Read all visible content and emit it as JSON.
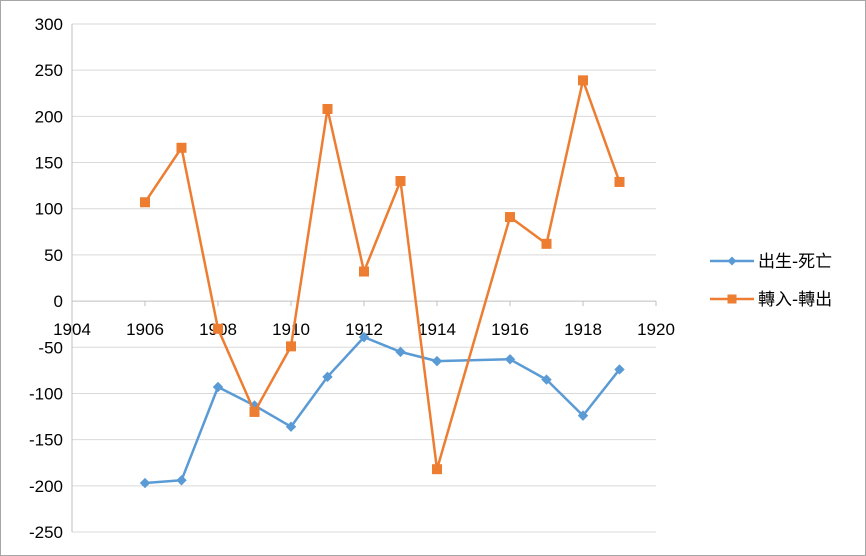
{
  "chart_data": {
    "type": "line",
    "title": "",
    "xlabel": "",
    "ylabel": "",
    "xlim": [
      1904,
      1920
    ],
    "ylim": [
      -250,
      300
    ],
    "x_ticks": [
      "1904",
      "1906",
      "1908",
      "1910",
      "1912",
      "1914",
      "1916",
      "1918",
      "1920"
    ],
    "y_ticks": [
      "300",
      "250",
      "200",
      "150",
      "100",
      "50",
      "0",
      "-50",
      "-100",
      "-150",
      "-200",
      "-250"
    ],
    "grid": "horizontal",
    "legend_position": "right",
    "x": [
      1906,
      1907,
      1908,
      1909,
      1910,
      1911,
      1912,
      1913,
      1914,
      1916,
      1917,
      1918,
      1919
    ],
    "series": [
      {
        "name": "出生-死亡",
        "color": "#5b9bd5",
        "marker": "diamond",
        "values": [
          -197,
          -194,
          -93,
          -113,
          -136,
          -82,
          -39,
          -55,
          -65,
          -63,
          -85,
          -124,
          -74
        ]
      },
      {
        "name": "轉入-轉出",
        "color": "#ed7d31",
        "marker": "square",
        "values": [
          107,
          166,
          -30,
          -120,
          -49,
          208,
          32,
          130,
          -182,
          91,
          62,
          239,
          129
        ]
      }
    ]
  }
}
